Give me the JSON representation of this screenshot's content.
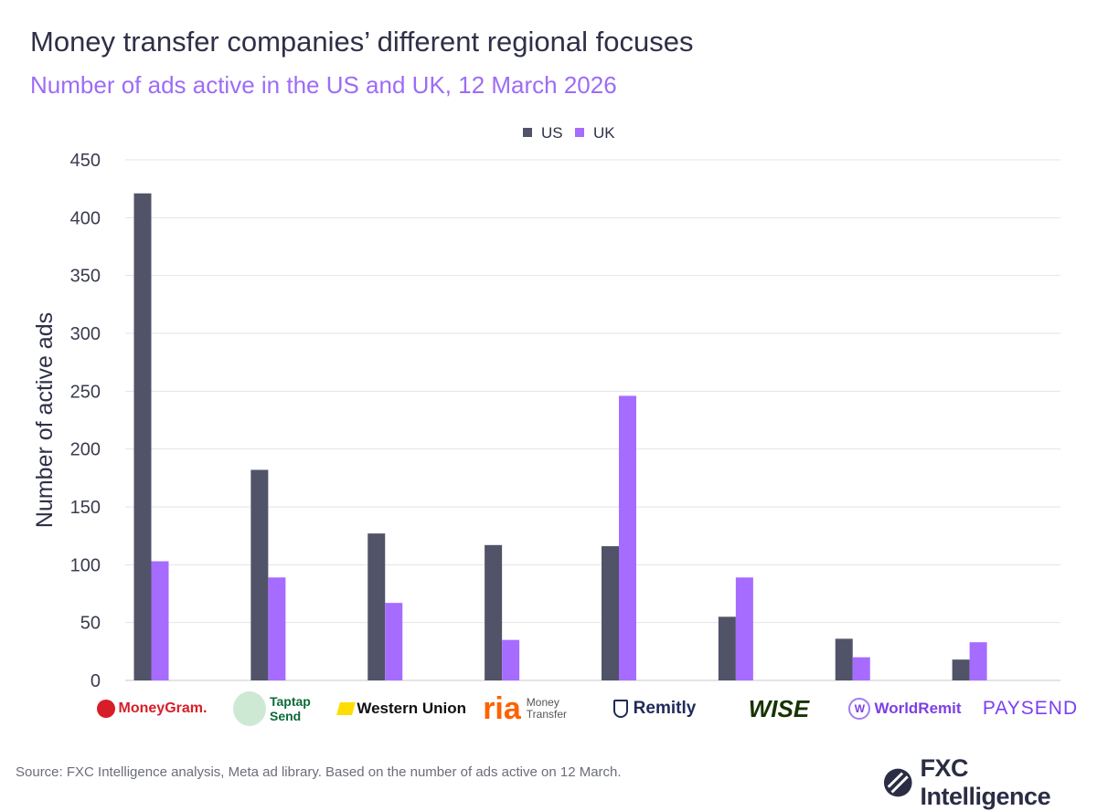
{
  "title": "Money transfer companies’ different regional focuses",
  "subtitle": "Number of ads active in the US and UK, 12 March 2026",
  "source": "Source: FXC Intelligence analysis, Meta ad library. Based on the number of ads active on 12 March.",
  "brand": "FXC Intelligence",
  "chart_data": {
    "type": "bar",
    "ylabel": "Number of active ads",
    "ylim": [
      0,
      450
    ],
    "yticks": [
      0,
      50,
      100,
      150,
      200,
      250,
      300,
      350,
      400,
      450
    ],
    "grid": true,
    "legend_position": "top-center",
    "categories": [
      "MoneyGram",
      "Taptap Send",
      "Western Union",
      "Ria Money Transfer",
      "Remitly",
      "Wise",
      "WorldRemit",
      "Paysend"
    ],
    "series": [
      {
        "name": "US",
        "color": "#515368",
        "values": [
          421,
          182,
          127,
          117,
          116,
          55,
          36,
          18
        ]
      },
      {
        "name": "UK",
        "color": "#a66cff",
        "values": [
          103,
          89,
          67,
          35,
          246,
          89,
          20,
          33
        ]
      }
    ]
  },
  "logos": [
    {
      "text": "MoneyGram.",
      "color": "#d71e28"
    },
    {
      "text": "Taptap Send",
      "color": "#0b6b3a"
    },
    {
      "text": "Western Union",
      "color": "#111111"
    },
    {
      "text": "ria",
      "sub": "Money Transfer",
      "color": "#ff6100"
    },
    {
      "text": "Remitly",
      "color": "#1f2a5a"
    },
    {
      "text": "WISE",
      "color": "#163300"
    },
    {
      "text": "WorldRemit",
      "color": "#7b3fe4"
    },
    {
      "text": "PAYSEND",
      "color": "#7b3ff2"
    }
  ]
}
